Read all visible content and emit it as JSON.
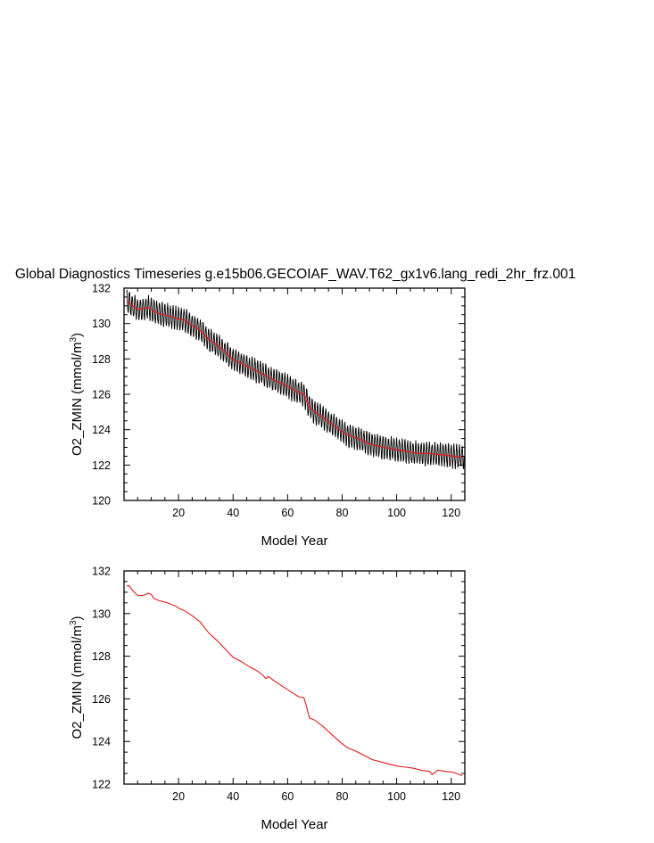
{
  "page_title": "Global Diagnostics Timeseries g.e15b06.GECOIAF_WAV.T62_gx1v6.lang_redi_2hr_frz.001",
  "colors": {
    "monthly": "#000000",
    "annual": "#e41a1c",
    "axes": "#000000"
  },
  "chart_data": [
    {
      "type": "line",
      "title": "Global Diagnostics Timeseries g.e15b06.GECOIAF_WAV.T62_gx1v6.lang_redi_2hr_frz.001",
      "xlabel": "Model Year",
      "ylabel_main": "O2_ZMIN (mmol/m",
      "ylabel_sup": "3",
      "ylabel_tail": ")",
      "xlim": [
        0,
        125
      ],
      "ylim": [
        120,
        132
      ],
      "xticks": [
        20,
        40,
        60,
        80,
        100,
        120
      ],
      "xtick_labels": [
        "20",
        "40",
        "60",
        "80",
        "100",
        "120"
      ],
      "yticks": [
        120,
        122,
        124,
        126,
        128,
        130,
        132
      ],
      "ytick_labels": [
        "120",
        "122",
        "124",
        "126",
        "128",
        "130",
        "132"
      ],
      "grid": false,
      "legend": "none",
      "series": [
        {
          "description": "monthly values, seasonal cycle of about ±0.6 around the annual mean",
          "color": "#000000",
          "seasonal_amplitude": 0.6
        },
        {
          "description": "annual mean",
          "color": "#e41a1c",
          "x": [
            1,
            3,
            5,
            7,
            9,
            11,
            13,
            16,
            19,
            22,
            25,
            28,
            31,
            34,
            37,
            40,
            43,
            46,
            49,
            52,
            55,
            58,
            61,
            64,
            66,
            68,
            70,
            73,
            76,
            79,
            82,
            85,
            88,
            91,
            94,
            97,
            100,
            103,
            106,
            109,
            112,
            115,
            118,
            121,
            124
          ],
          "values": [
            131.3,
            131.0,
            130.8,
            130.85,
            130.9,
            130.7,
            130.55,
            130.45,
            130.3,
            130.2,
            129.9,
            129.6,
            129.1,
            128.8,
            128.4,
            127.95,
            127.75,
            127.5,
            127.3,
            127.05,
            126.8,
            126.6,
            126.35,
            126.1,
            126.0,
            125.3,
            125.0,
            124.7,
            124.35,
            124.0,
            123.7,
            123.55,
            123.35,
            123.15,
            123.05,
            122.95,
            122.85,
            122.8,
            122.7,
            122.65,
            122.65,
            122.6,
            122.55,
            122.5,
            122.45
          ]
        }
      ]
    },
    {
      "type": "line",
      "xlabel": "Model Year",
      "ylabel_main": "O2_ZMIN (mmol/m",
      "ylabel_sup": "3",
      "ylabel_tail": ")",
      "xlim": [
        0,
        125
      ],
      "ylim": [
        122,
        132
      ],
      "xticks": [
        20,
        40,
        60,
        80,
        100,
        120
      ],
      "xtick_labels": [
        "20",
        "40",
        "60",
        "80",
        "100",
        "120"
      ],
      "yticks": [
        122,
        124,
        126,
        128,
        130,
        132
      ],
      "ytick_labels": [
        "122",
        "124",
        "126",
        "128",
        "130",
        "132"
      ],
      "grid": false,
      "legend": "none",
      "series": [
        {
          "description": "annual mean",
          "color": "#e41a1c",
          "x": [
            1,
            2,
            3,
            5,
            7,
            9,
            10,
            11,
            13,
            16,
            19,
            20,
            22,
            25,
            28,
            31,
            34,
            37,
            40,
            43,
            46,
            49,
            51,
            52,
            53,
            55,
            58,
            61,
            64,
            66,
            67,
            68,
            70,
            73,
            76,
            79,
            82,
            85,
            88,
            91,
            94,
            97,
            100,
            103,
            106,
            109,
            112,
            113,
            115,
            118,
            121,
            124
          ],
          "values": [
            131.3,
            131.3,
            131.1,
            130.85,
            130.85,
            130.95,
            130.9,
            130.7,
            130.6,
            130.5,
            130.35,
            130.25,
            130.15,
            129.9,
            129.6,
            129.1,
            128.75,
            128.35,
            127.95,
            127.75,
            127.5,
            127.3,
            127.1,
            126.95,
            127.05,
            126.85,
            126.6,
            126.35,
            126.1,
            126.05,
            125.6,
            125.1,
            125.0,
            124.7,
            124.35,
            124.0,
            123.7,
            123.55,
            123.35,
            123.15,
            123.05,
            122.95,
            122.85,
            122.8,
            122.75,
            122.65,
            122.6,
            122.45,
            122.65,
            122.6,
            122.55,
            122.4
          ]
        }
      ]
    }
  ]
}
